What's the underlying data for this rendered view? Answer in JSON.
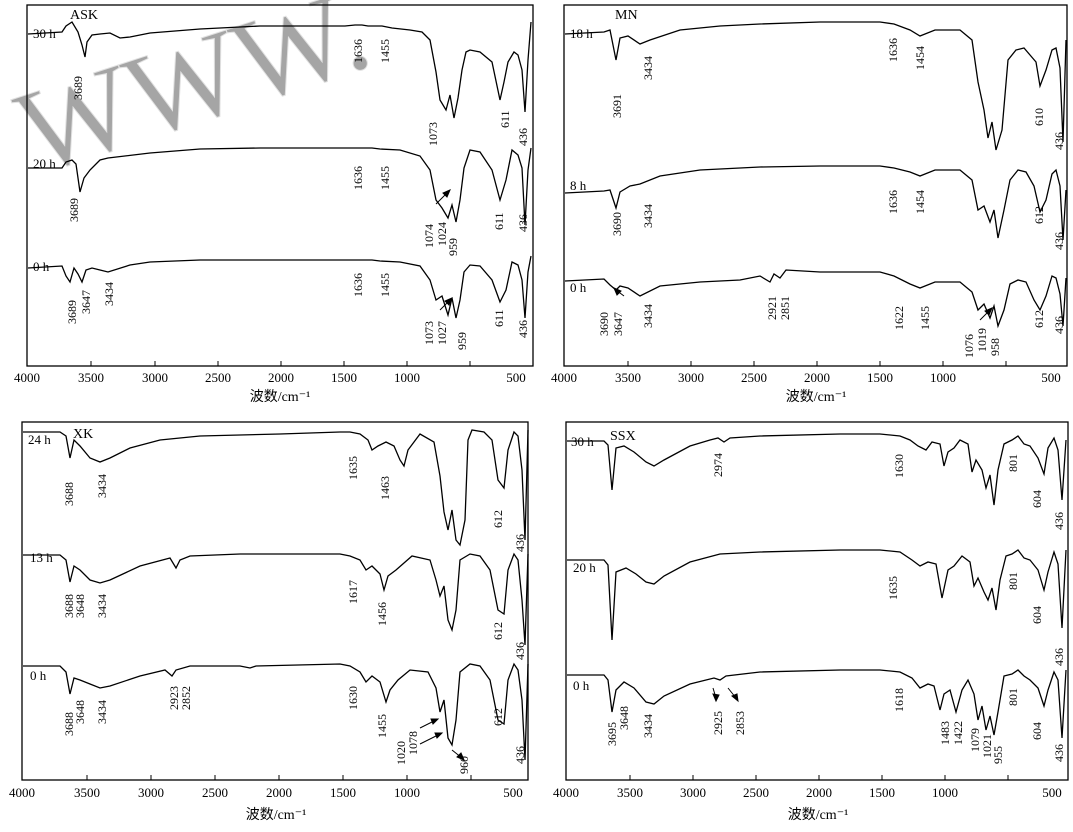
{
  "figure": {
    "panels": [
      {
        "label": "ASK",
        "xlabel": "波数/cm⁻¹",
        "ticks": [
          "4000",
          "3500",
          "3000",
          "2500",
          "2000",
          "1500",
          "1000",
          "500"
        ],
        "spectra": [
          {
            "time": "30 h",
            "peaks": [
              "3689",
              "1636",
              "1455",
              "1073",
              "611",
              "436"
            ]
          },
          {
            "time": "20 h",
            "peaks": [
              "3689",
              "1636",
              "1455",
              "1074",
              "1024",
              "959",
              "611",
              "436"
            ]
          },
          {
            "time": "0 h",
            "peaks": [
              "3689",
              "3647",
              "3434",
              "1636",
              "1455",
              "1073",
              "1027",
              "959",
              "611",
              "436"
            ]
          }
        ]
      },
      {
        "label": "MN",
        "xlabel": "波数/cm⁻¹",
        "ticks": [
          "4000",
          "3500",
          "3000",
          "2500",
          "2000",
          "1500",
          "1000",
          "500"
        ],
        "spectra": [
          {
            "time": "18 h",
            "peaks": [
              "3691",
              "3434",
              "1636",
              "1454",
              "610",
              "436"
            ]
          },
          {
            "time": "8 h",
            "peaks": [
              "3690",
              "3434",
              "1636",
              "1454",
              "612",
              "436"
            ]
          },
          {
            "time": "0 h",
            "peaks": [
              "3690",
              "3647",
              "3434",
              "2921",
              "2851",
              "1622",
              "1455",
              "1076",
              "1019",
              "958",
              "612",
              "436"
            ]
          }
        ]
      },
      {
        "label": "XK",
        "xlabel": "波数/cm⁻¹",
        "ticks": [
          "4000",
          "3500",
          "3000",
          "2500",
          "2000",
          "1500",
          "1000",
          "500"
        ],
        "spectra": [
          {
            "time": "24 h",
            "peaks": [
              "3688",
              "3434",
              "1635",
              "1463",
              "612",
              "436"
            ]
          },
          {
            "time": "13 h",
            "peaks": [
              "3688",
              "3648",
              "3434",
              "1617",
              "1456",
              "612",
              "436"
            ]
          },
          {
            "time": "0 h",
            "peaks": [
              "3688",
              "3648",
              "3434",
              "2923",
              "2852",
              "1630",
              "1455",
              "1078",
              "1020",
              "960",
              "612",
              "436"
            ]
          }
        ]
      },
      {
        "label": "SSX",
        "xlabel": "波数/cm⁻¹",
        "ticks": [
          "4000",
          "3500",
          "3000",
          "2500",
          "2000",
          "1500",
          "1000",
          "500"
        ],
        "spectra": [
          {
            "time": "30 h",
            "peaks": [
              "2974",
              "1630",
              "801",
              "604",
              "436"
            ]
          },
          {
            "time": "20 h",
            "peaks": [
              "1635",
              "801",
              "604",
              "436"
            ]
          },
          {
            "time": "0 h",
            "peaks": [
              "3695",
              "3648",
              "3434",
              "2925",
              "2853",
              "1618",
              "1483",
              "1422",
              "1079",
              "1021",
              "955",
              "801",
              "604",
              "436"
            ]
          }
        ]
      }
    ]
  }
}
